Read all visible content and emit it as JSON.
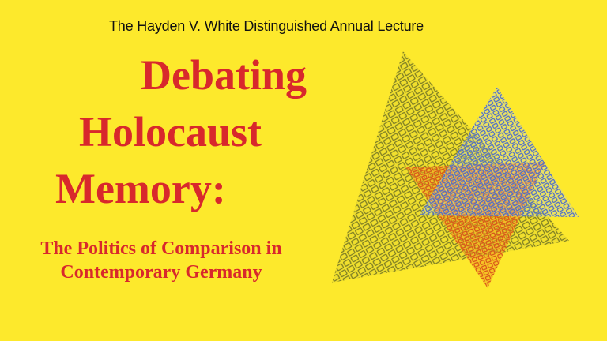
{
  "header": {
    "kicker": "The Hayden V. White Distinguished Annual Lecture"
  },
  "title": {
    "line1": "Debating",
    "line2": "Holocaust",
    "line3": "Memory:"
  },
  "subtitle": {
    "line1": "The Politics of Comparison in",
    "line2": "Contemporary Germany"
  },
  "colors": {
    "background": "#fde92c",
    "title": "#d8282c",
    "olive": "#8a8a2a",
    "blue": "#4a6ccc",
    "orange": "#e0701a"
  },
  "artwork": {
    "icon": "overlapping-patterned-triangles"
  }
}
